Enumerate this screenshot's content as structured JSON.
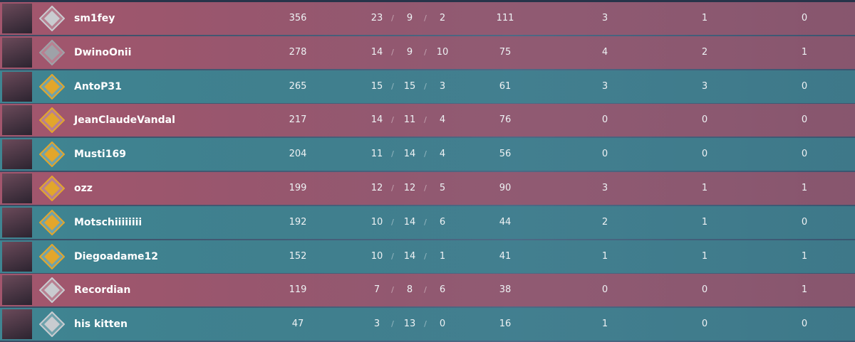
{
  "scoreboard": {
    "separator": "/",
    "rows": [
      {
        "name": "sm1fey",
        "score": 356,
        "kills": 23,
        "deaths": 9,
        "assists": 2,
        "econ": 111,
        "first_bloods": 3,
        "plants": 1,
        "defuses": 0,
        "color": "#a3566d",
        "rank_color": "#c9ccd0"
      },
      {
        "name": "DwinoOnii",
        "score": 278,
        "kills": 14,
        "deaths": 9,
        "assists": 10,
        "econ": 75,
        "first_bloods": 4,
        "plants": 2,
        "defuses": 1,
        "color": "#a3566d",
        "rank_color": "#9ea2a8"
      },
      {
        "name": "AntoP31",
        "score": 265,
        "kills": 15,
        "deaths": 15,
        "assists": 3,
        "econ": 61,
        "first_bloods": 3,
        "plants": 3,
        "defuses": 0,
        "color": "#3f8592",
        "rank_color": "#e2a62c"
      },
      {
        "name": "JeanClaudeVandal",
        "score": 217,
        "kills": 14,
        "deaths": 11,
        "assists": 4,
        "econ": 76,
        "first_bloods": 0,
        "plants": 0,
        "defuses": 0,
        "color": "#a3566d",
        "rank_color": "#e2a62c"
      },
      {
        "name": "Musti169",
        "score": 204,
        "kills": 11,
        "deaths": 14,
        "assists": 4,
        "econ": 56,
        "first_bloods": 0,
        "plants": 0,
        "defuses": 0,
        "color": "#3f8592",
        "rank_color": "#e2a62c"
      },
      {
        "name": "ozz",
        "score": 199,
        "kills": 12,
        "deaths": 12,
        "assists": 5,
        "econ": 90,
        "first_bloods": 3,
        "plants": 1,
        "defuses": 1,
        "color": "#a3566d",
        "rank_color": "#e2a62c"
      },
      {
        "name": "Motschiiiiiiii",
        "score": 192,
        "kills": 10,
        "deaths": 14,
        "assists": 6,
        "econ": 44,
        "first_bloods": 2,
        "plants": 1,
        "defuses": 0,
        "color": "#3f8592",
        "rank_color": "#e2a62c"
      },
      {
        "name": "Diegoadame12",
        "score": 152,
        "kills": 10,
        "deaths": 14,
        "assists": 1,
        "econ": 41,
        "first_bloods": 1,
        "plants": 1,
        "defuses": 1,
        "color": "#3f8592",
        "rank_color": "#e2a62c"
      },
      {
        "name": "Recordian",
        "score": 119,
        "kills": 7,
        "deaths": 8,
        "assists": 6,
        "econ": 38,
        "first_bloods": 0,
        "plants": 0,
        "defuses": 1,
        "color": "#a3566d",
        "rank_color": "#c9ccd0"
      },
      {
        "name": "his kitten",
        "score": 47,
        "kills": 3,
        "deaths": 13,
        "assists": 0,
        "econ": 16,
        "first_bloods": 1,
        "plants": 0,
        "defuses": 0,
        "color": "#3f8592",
        "rank_color": "#c9ccd0"
      }
    ]
  }
}
